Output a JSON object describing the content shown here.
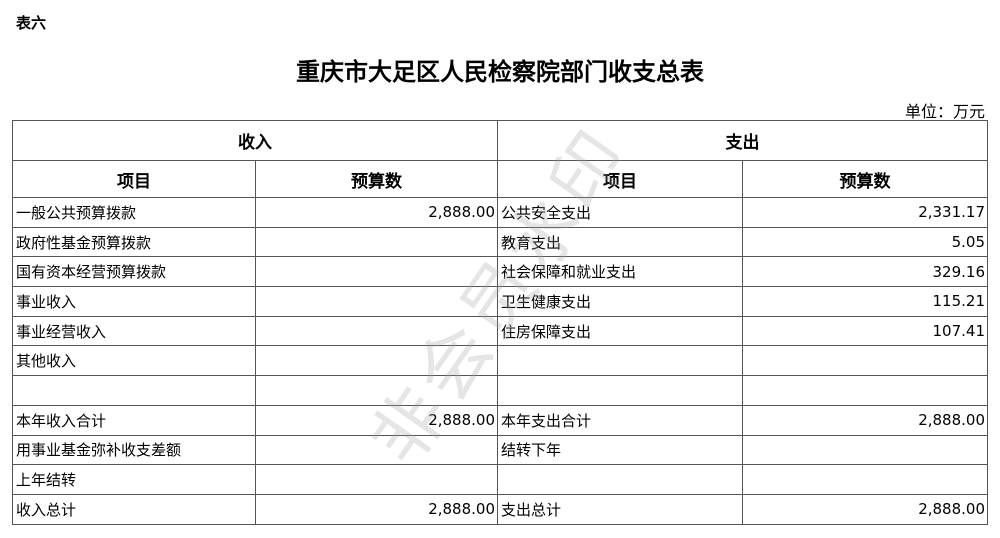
{
  "table_label": "表六",
  "title": "重庆市大足区人民检察院部门收支总表",
  "unit": "单位：万元",
  "watermark": "非会员水印",
  "headers": {
    "income": "收入",
    "expense": "支出",
    "item": "项目",
    "budget": "预算数"
  },
  "rows": [
    {
      "in_item": "一般公共预算拨款",
      "in_val": "2,888.00",
      "ex_item": "公共安全支出",
      "ex_val": "2,331.17"
    },
    {
      "in_item": "政府性基金预算拨款",
      "in_val": "",
      "ex_item": "教育支出",
      "ex_val": "5.05"
    },
    {
      "in_item": "国有资本经营预算拨款",
      "in_val": "",
      "ex_item": "社会保障和就业支出",
      "ex_val": "329.16"
    },
    {
      "in_item": "事业收入",
      "in_val": "",
      "ex_item": "卫生健康支出",
      "ex_val": "115.21"
    },
    {
      "in_item": "事业经营收入",
      "in_val": "",
      "ex_item": "住房保障支出",
      "ex_val": "107.41"
    },
    {
      "in_item": "其他收入",
      "in_val": "",
      "ex_item": "",
      "ex_val": ""
    },
    {
      "in_item": "",
      "in_val": "",
      "ex_item": "",
      "ex_val": ""
    },
    {
      "in_item": "本年收入合计",
      "in_val": "2,888.00",
      "ex_item": "本年支出合计",
      "ex_val": "2,888.00"
    },
    {
      "in_item": "用事业基金弥补收支差额",
      "in_val": "",
      "ex_item": "结转下年",
      "ex_val": ""
    },
    {
      "in_item": "上年结转",
      "in_val": "",
      "ex_item": "",
      "ex_val": ""
    },
    {
      "in_item": "收入总计",
      "in_val": "2,888.00",
      "ex_item": "支出总计",
      "ex_val": "2,888.00"
    }
  ]
}
